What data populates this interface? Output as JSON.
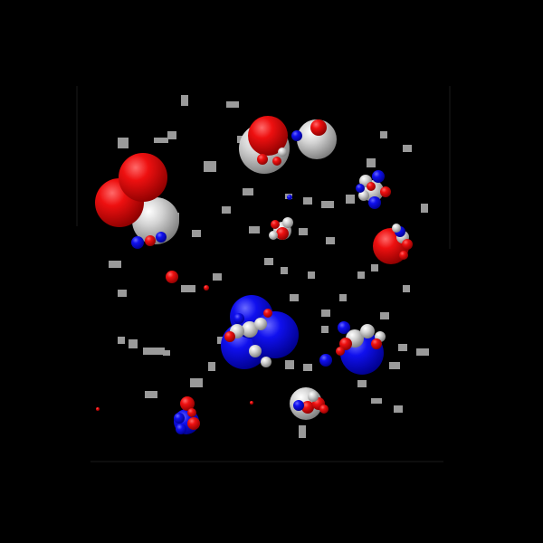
{
  "scene": {
    "background": "#000000",
    "colors": {
      "red": "#e00000",
      "blue": "#0000e0",
      "gray": "#c8c8c8"
    }
  }
}
